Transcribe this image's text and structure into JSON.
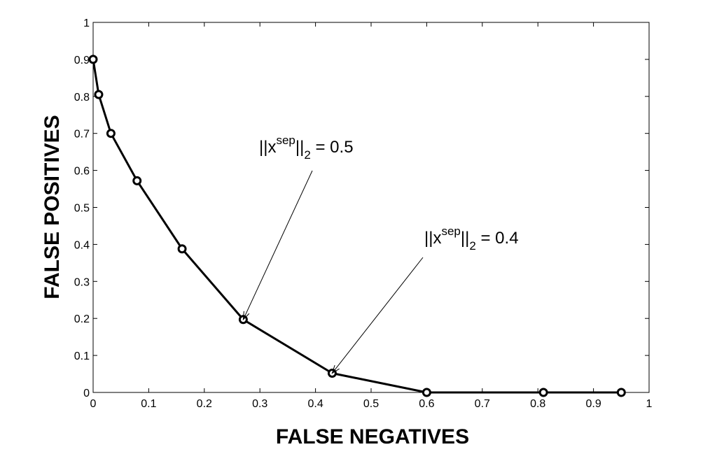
{
  "chart_data": {
    "type": "line",
    "xlabel": "FALSE NEGATIVES",
    "ylabel": "FALSE POSITIVES",
    "xlim": [
      0,
      1
    ],
    "ylim": [
      0,
      1
    ],
    "grid": false,
    "xticks": [
      "0",
      "0.1",
      "0.2",
      "0.3",
      "0.4",
      "0.5",
      "0.6",
      "0.7",
      "0.8",
      "0.9",
      "1"
    ],
    "yticks": [
      "0",
      "0.1",
      "0.2",
      "0.3",
      "0.4",
      "0.5",
      "0.6",
      "0.7",
      "0.8",
      "0.9",
      "1"
    ],
    "series": [
      {
        "marker": "circle",
        "color": "#000000",
        "x": [
          0.0,
          0.01,
          0.032,
          0.079,
          0.16,
          0.27,
          0.43,
          0.6,
          0.81,
          0.95
        ],
        "y": [
          0.9,
          0.805,
          0.7,
          0.572,
          0.388,
          0.197,
          0.052,
          0.0,
          0.0,
          0.0
        ]
      }
    ],
    "annotations": [
      {
        "base": "||x",
        "sup": "sep",
        "mid": "||",
        "sub": "2",
        "tail": " = 0.5",
        "point": [
          0.27,
          0.197
        ]
      },
      {
        "base": "||x",
        "sup": "sep",
        "mid": "||",
        "sub": "2",
        "tail": " = 0.4",
        "point": [
          0.43,
          0.052
        ]
      }
    ]
  }
}
